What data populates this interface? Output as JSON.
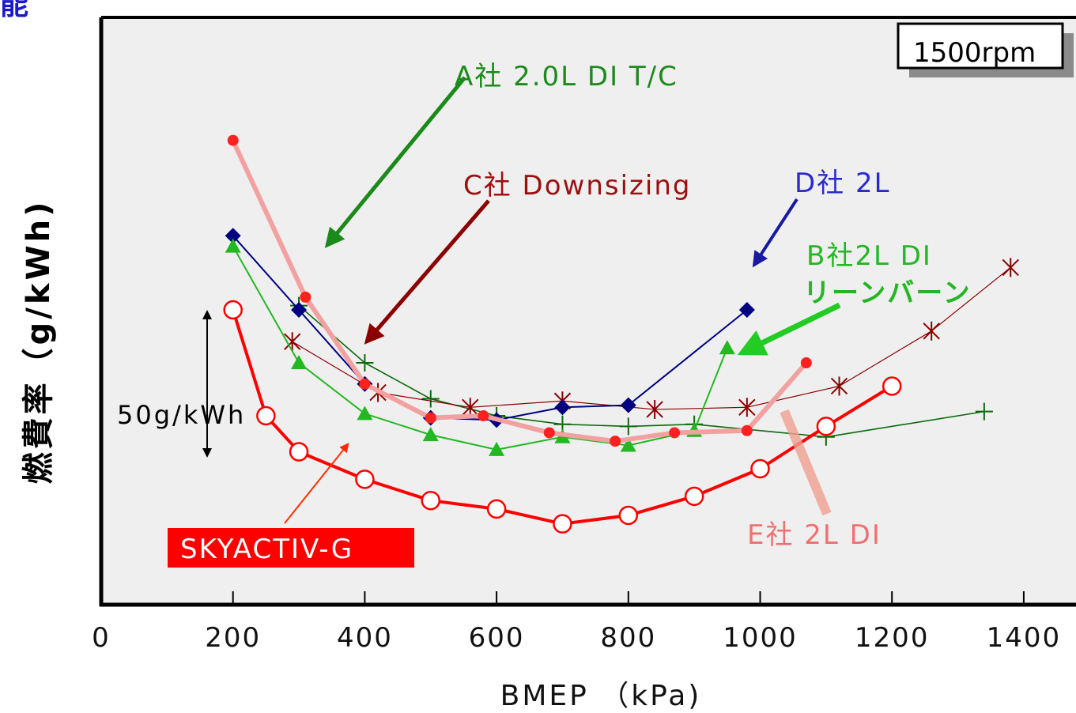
{
  "header_fragment": "能",
  "chart_data": {
    "type": "line",
    "xlabel": "BMEP （kPa)",
    "ylabel": "燃費率（g/kWh)",
    "x_ticks": [
      "0",
      "200",
      "400",
      "600",
      "800",
      "1000",
      "1200",
      "1400"
    ],
    "xlim": [
      0,
      1400
    ],
    "rpm_label": "1500rpm",
    "scale_label": "50g/kWh",
    "series": [
      {
        "name": "A社 2.0L DI T/C",
        "color": "#0b6b0b",
        "marker": "plus",
        "x": [
          300,
          400,
          500,
          600,
          700,
          800,
          900,
          1100,
          1340
        ],
        "y": [
          282,
          255,
          238,
          230,
          226,
          225,
          226,
          220,
          232
        ]
      },
      {
        "name": "C社 Downsizing",
        "color": "#8b0000",
        "marker": "asterisk",
        "x": [
          290,
          420,
          560,
          700,
          840,
          980,
          1120,
          1260,
          1380
        ],
        "y": [
          265,
          241,
          234,
          237,
          233,
          234,
          244,
          270,
          300
        ]
      },
      {
        "name": "D社 2L",
        "color": "#000080",
        "marker": "diamond",
        "x": [
          200,
          300,
          400,
          500,
          600,
          700,
          800,
          980
        ],
        "y": [
          315,
          280,
          245,
          229,
          228,
          234,
          235,
          280
        ]
      },
      {
        "name": "B社2L DI リーンバーン",
        "color": "#22b822",
        "marker": "triangle",
        "x": [
          200,
          300,
          400,
          500,
          600,
          700,
          800,
          900,
          950
        ],
        "y": [
          310,
          255,
          231,
          221,
          214,
          220,
          216,
          223,
          262
        ]
      },
      {
        "name": "E社 2L DI",
        "color": "#f08080",
        "marker": "dot",
        "x": [
          200,
          310,
          400,
          500,
          580,
          680,
          780,
          870,
          980,
          1070
        ],
        "y": [
          360,
          286,
          245,
          229,
          230,
          222,
          218,
          222,
          223,
          255
        ]
      },
      {
        "name": "SKYACTIV-G",
        "color": "#ff0000",
        "marker": "circle",
        "x": [
          200,
          250,
          300,
          400,
          500,
          600,
          700,
          800,
          900,
          1000,
          1100,
          1200
        ],
        "y": [
          280,
          230,
          213,
          200,
          190,
          186,
          179,
          183,
          192,
          205,
          225,
          244
        ]
      }
    ],
    "annotations": [
      {
        "text": "A社 2.0L DI T/C",
        "color": "#1a8a1a"
      },
      {
        "text": "C社 Downsizing",
        "color": "#9b1010"
      },
      {
        "text": "D社 2L",
        "color": "#2a2ad0"
      },
      {
        "text": "B社2L DI",
        "color": "#22b822"
      },
      {
        "text": "リーンバーン",
        "color": "#22b822"
      },
      {
        "text": "E社 2L DI",
        "color": "#f07070"
      },
      {
        "text": "SKYACTIV-G",
        "color": "#ffffff"
      }
    ]
  }
}
